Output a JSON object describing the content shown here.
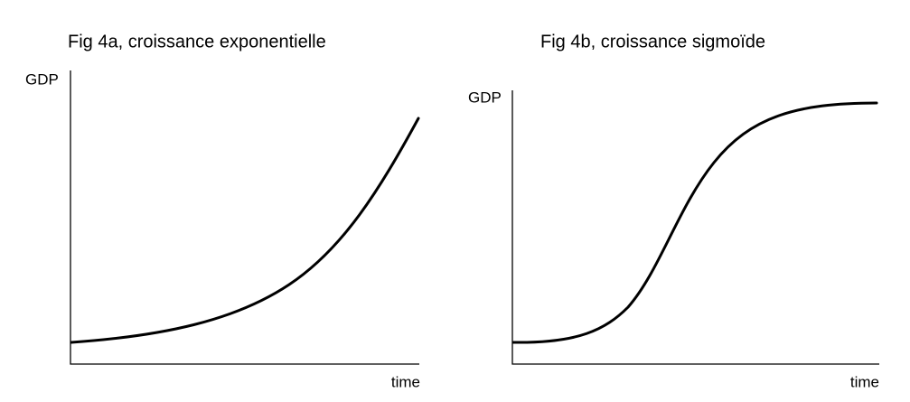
{
  "figures": [
    {
      "title": "Fig 4a, croissance exponentielle",
      "y_label": "GDP",
      "x_label": "time"
    },
    {
      "title": "Fig 4b, croissance sigmoïde",
      "y_label": "GDP",
      "x_label": "time"
    }
  ]
}
